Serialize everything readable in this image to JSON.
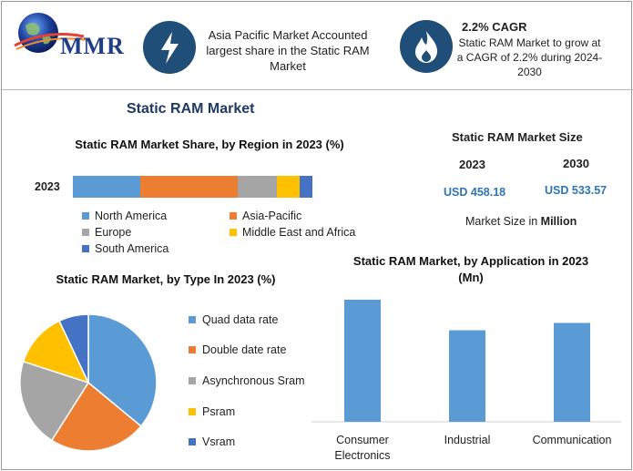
{
  "logo": {
    "text": "MMR"
  },
  "header": {
    "info1": "Asia Pacific Market Accounted largest share in the Static RAM Market",
    "cagr_title": "2.2% CAGR",
    "cagr_text": "Static RAM Market to grow at a CAGR of 2.2% during 2024-2030"
  },
  "page_title": "Static RAM Market",
  "market_size": {
    "title": "Static RAM Market Size",
    "year1": "2023",
    "year2": "2030",
    "value1": "USD 458.18",
    "value2": "USD 533.57",
    "note_prefix": "Market Size in ",
    "note_bold": "Million"
  },
  "colors": {
    "blue": "#5b9bd5",
    "orange": "#ed7d31",
    "gray": "#a5a5a5",
    "yellow": "#ffc000",
    "navy": "#4472c4",
    "dark": "#1f4e79"
  },
  "chart_data": [
    {
      "type": "bar",
      "orientation": "horizontal-stacked",
      "title": "Static RAM Market Share, by Region in 2023 (%)",
      "categories": [
        "2023"
      ],
      "series": [
        {
          "name": "North America",
          "values": [
            28
          ],
          "color": "#5b9bd5"
        },
        {
          "name": "Asia-Pacific",
          "values": [
            41
          ],
          "color": "#ed7d31"
        },
        {
          "name": "Europe",
          "values": [
            16
          ],
          "color": "#a5a5a5"
        },
        {
          "name": "Middle East and Africa",
          "values": [
            9.5
          ],
          "color": "#ffc000"
        },
        {
          "name": "South America",
          "values": [
            5.5
          ],
          "color": "#4472c4"
        }
      ],
      "xlim": [
        0,
        100
      ],
      "legend": "bottom"
    },
    {
      "type": "pie",
      "title": "Static RAM Market, by Type In 2023 (%)",
      "labels": [
        "Quad data rate",
        "Double date rate",
        "Asynchronous Sram",
        "Psram",
        "Vsram"
      ],
      "values": [
        36,
        23,
        21,
        13,
        7
      ],
      "colors": [
        "#5b9bd5",
        "#ed7d31",
        "#a5a5a5",
        "#ffc000",
        "#4472c4"
      ],
      "legend": "right"
    },
    {
      "type": "bar",
      "title": "Static RAM Market, by Application in 2023 (Mn)",
      "categories": [
        "Consumer Electronics",
        "Industrial",
        "Communication"
      ],
      "values": [
        100,
        75,
        81
      ],
      "color": "#5b9bd5",
      "ylim": [
        0,
        100
      ]
    }
  ]
}
